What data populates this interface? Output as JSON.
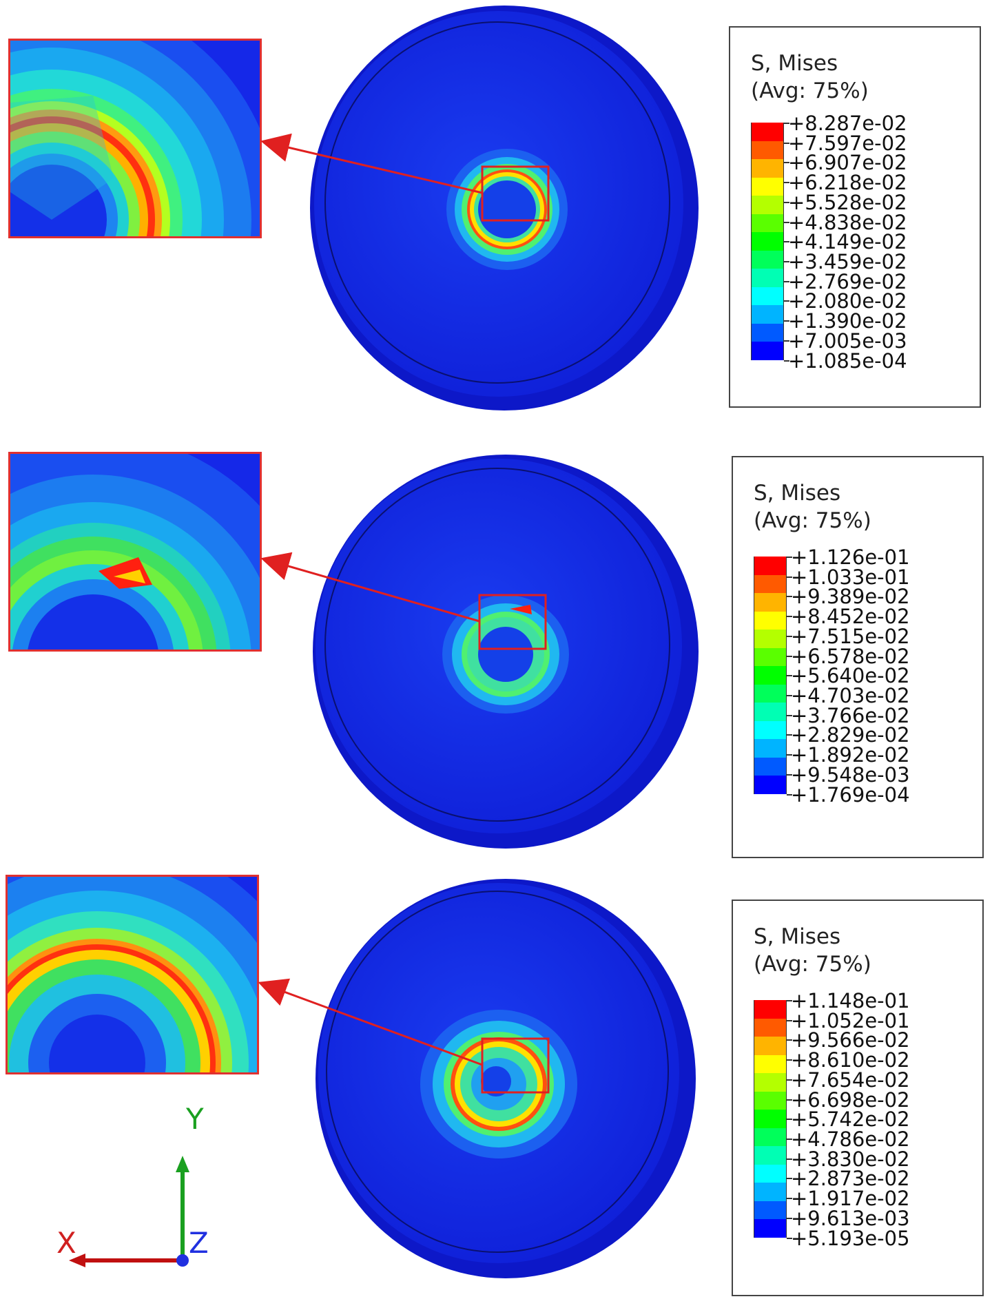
{
  "legend_colors": [
    "#ff0000",
    "#ff5a00",
    "#ffb400",
    "#ffff00",
    "#b4ff00",
    "#5aff00",
    "#00ff00",
    "#00ff5a",
    "#00ffb4",
    "#00ffff",
    "#00b4ff",
    "#005aff",
    "#0000ff"
  ],
  "panels": [
    {
      "legend": {
        "title_line1": "S, Mises",
        "title_line2": "(Avg: 75%)",
        "values": [
          "+8.287e-02",
          "+7.597e-02",
          "+6.907e-02",
          "+6.218e-02",
          "+5.528e-02",
          "+4.838e-02",
          "+4.149e-02",
          "+3.459e-02",
          "+2.769e-02",
          "+2.080e-02",
          "+1.390e-02",
          "+7.005e-03",
          "+1.085e-04"
        ]
      }
    },
    {
      "legend": {
        "title_line1": "S, Mises",
        "title_line2": "(Avg: 75%)",
        "values": [
          "+1.126e-01",
          "+1.033e-01",
          "+9.389e-02",
          "+8.452e-02",
          "+7.515e-02",
          "+6.578e-02",
          "+5.640e-02",
          "+4.703e-02",
          "+3.766e-02",
          "+2.829e-02",
          "+1.892e-02",
          "+9.548e-03",
          "+1.769e-04"
        ]
      }
    },
    {
      "legend": {
        "title_line1": "S, Mises",
        "title_line2": "(Avg: 75%)",
        "values": [
          "+1.148e-01",
          "+1.052e-01",
          "+9.566e-02",
          "+8.610e-02",
          "+7.654e-02",
          "+6.698e-02",
          "+5.742e-02",
          "+4.786e-02",
          "+3.830e-02",
          "+2.873e-02",
          "+1.917e-02",
          "+9.613e-03",
          "+5.193e-05"
        ]
      }
    }
  ],
  "triad": {
    "x_label": "X",
    "y_label": "Y",
    "z_label": "Z"
  }
}
